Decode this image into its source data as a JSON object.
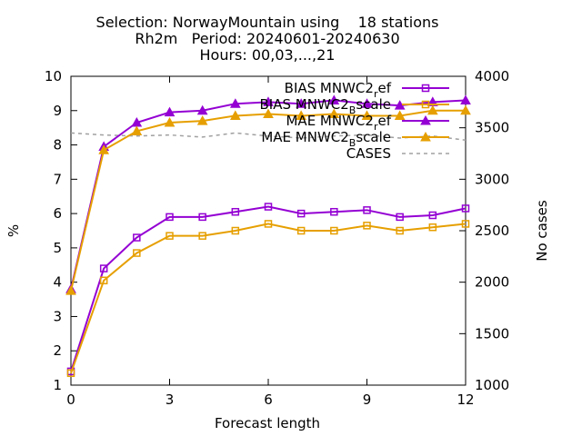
{
  "chart_data": {
    "type": "line",
    "title_lines": [
      "Selection: NorwayMountain using    18 stations",
      "Rh2m   Period: 20240601-20240630",
      "Hours: 00,03,...,21"
    ],
    "xlabel": "Forecast length",
    "ylabel": "%",
    "y2label": "No cases",
    "xlim": [
      0,
      12
    ],
    "ylim": [
      1,
      10
    ],
    "y2lim": [
      1000,
      4000
    ],
    "x_ticks": [
      0,
      3,
      6,
      9,
      12
    ],
    "y_ticks": [
      1,
      2,
      3,
      4,
      5,
      6,
      7,
      8,
      9,
      10
    ],
    "y2_ticks": [
      1000,
      1500,
      2000,
      2500,
      3000,
      3500,
      4000
    ],
    "grid": false,
    "legend_position": "top-right",
    "x": [
      0,
      1,
      2,
      3,
      4,
      5,
      6,
      7,
      8,
      9,
      10,
      11,
      12
    ],
    "series": [
      {
        "name": "BIAS MNWC2_ref",
        "label": {
          "main": "BIAS MNWC2",
          "sub": "r",
          "tail": "ef"
        },
        "color": "#9400d3",
        "marker": "square",
        "axis": "y",
        "values": [
          1.4,
          4.4,
          5.3,
          5.9,
          5.9,
          6.05,
          6.2,
          6.0,
          6.05,
          6.1,
          5.9,
          5.95,
          6.15
        ]
      },
      {
        "name": "BIAS MNWC2_Bscale",
        "label": {
          "main": "BIAS MNWC2",
          "sub": "B",
          "tail": "scale"
        },
        "color": "#e69f00",
        "marker": "square",
        "axis": "y",
        "values": [
          1.35,
          4.05,
          4.85,
          5.35,
          5.35,
          5.5,
          5.7,
          5.5,
          5.5,
          5.65,
          5.5,
          5.6,
          5.7
        ]
      },
      {
        "name": "MAE MNWC2_ref",
        "label": {
          "main": "MAE MNWC2",
          "sub": "r",
          "tail": "ef"
        },
        "color": "#9400d3",
        "marker": "triangle",
        "axis": "y",
        "values": [
          3.8,
          7.95,
          8.65,
          8.95,
          9.0,
          9.2,
          9.25,
          9.2,
          9.3,
          9.2,
          9.15,
          9.25,
          9.3
        ]
      },
      {
        "name": "MAE MNWC2_Bscale",
        "label": {
          "main": "MAE MNWC2",
          "sub": "B",
          "tail": "scale"
        },
        "color": "#e69f00",
        "marker": "triangle",
        "axis": "y",
        "values": [
          3.75,
          7.85,
          8.4,
          8.65,
          8.7,
          8.85,
          8.9,
          8.85,
          8.9,
          8.85,
          8.85,
          9.0,
          9.0
        ]
      },
      {
        "name": "CASES",
        "label": {
          "main": "CASES",
          "sub": "",
          "tail": ""
        },
        "color": "#a0a0a0",
        "marker": "none",
        "dashed": true,
        "axis": "y2",
        "values": [
          3450,
          3430,
          3420,
          3430,
          3410,
          3450,
          3420,
          3400,
          3420,
          3430,
          3400,
          3420,
          3380
        ]
      }
    ]
  }
}
